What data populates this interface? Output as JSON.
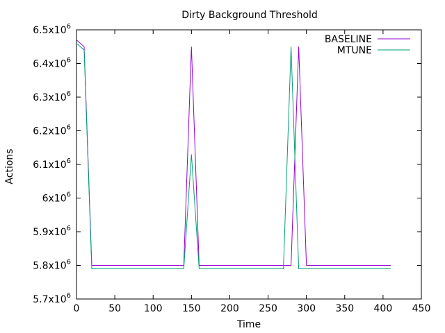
{
  "chart_data": {
    "type": "line",
    "title": "Dirty Background Threshold",
    "xlabel": "Time",
    "ylabel": "Actions",
    "xlim": [
      0,
      450
    ],
    "ylim": [
      5700000,
      6500000
    ],
    "x_ticks": [
      0,
      50,
      100,
      150,
      200,
      250,
      300,
      350,
      400,
      450
    ],
    "y_ticks": [
      {
        "value": 5700000,
        "mantissa": "5.7x10",
        "exp": "6"
      },
      {
        "value": 5800000,
        "mantissa": "5.8x10",
        "exp": "6"
      },
      {
        "value": 5900000,
        "mantissa": "5.9x10",
        "exp": "6"
      },
      {
        "value": 6000000,
        "mantissa": "6x10",
        "exp": "6"
      },
      {
        "value": 6100000,
        "mantissa": "6.1x10",
        "exp": "6"
      },
      {
        "value": 6200000,
        "mantissa": "6.2x10",
        "exp": "6"
      },
      {
        "value": 6300000,
        "mantissa": "6.3x10",
        "exp": "6"
      },
      {
        "value": 6400000,
        "mantissa": "6.4x10",
        "exp": "6"
      },
      {
        "value": 6500000,
        "mantissa": "6.5x10",
        "exp": "6"
      }
    ],
    "grid": false,
    "legend_position": "top-right",
    "series": [
      {
        "name": "BASELINE",
        "color": "#9400d3",
        "points": [
          [
            0,
            6470000
          ],
          [
            10,
            6450000
          ],
          [
            20,
            5800000
          ],
          [
            140,
            5800000
          ],
          [
            150,
            6450000
          ],
          [
            160,
            5800000
          ],
          [
            280,
            5800000
          ],
          [
            290,
            6450000
          ],
          [
            300,
            5800000
          ],
          [
            410,
            5800000
          ]
        ]
      },
      {
        "name": "MTUNE",
        "color": "#009e73",
        "points": [
          [
            0,
            6460000
          ],
          [
            10,
            6440000
          ],
          [
            20,
            5790000
          ],
          [
            140,
            5790000
          ],
          [
            150,
            6130000
          ],
          [
            160,
            5790000
          ],
          [
            270,
            5790000
          ],
          [
            280,
            6450000
          ],
          [
            290,
            5790000
          ],
          [
            410,
            5790000
          ]
        ]
      }
    ]
  }
}
